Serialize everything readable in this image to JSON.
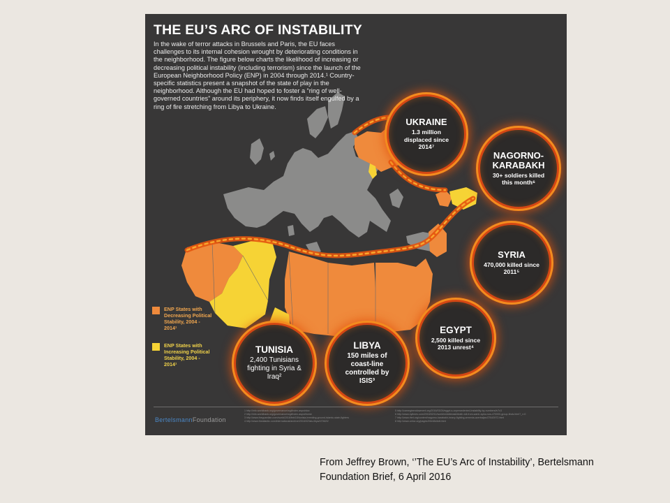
{
  "infographic": {
    "title": "THE EU’S ARC OF INSTABILITY",
    "intro": "In the wake of terror attacks in Brussels and Paris, the EU faces challenges to its internal cohesion wrought by deteriorating conditions in the neighborhood. The figure below charts the likelihood of increasing or decreasing political instability (including terrorism) since the launch of the European Neighborhood Policy (ENP) in 2004 through 2014.¹ Country-specific statistics present a snapshot of the state of play in the neighborhood. Although the EU had hoped to foster a “ring of well-governed countries” around its periphery, it now finds itself engulfed by a ring of fire stretching from Libya to Ukraine.",
    "colors": {
      "background": "#383737",
      "eu_land": "#8b8b8a",
      "decreasing": "#ef8a3c",
      "increasing": "#f6d335",
      "fire": "#e4540e"
    },
    "rings": {
      "ukraine": {
        "name": "UKRAINE",
        "stat": "1.3 million displaced since 2014⁷"
      },
      "nagorno": {
        "name1": "NAGORNO-",
        "name2": "KARABAKH",
        "stat": "30+ soldiers killed this month⁶"
      },
      "syria": {
        "name": "SYRIA",
        "stat": "470,000 killed since 2011⁵"
      },
      "egypt": {
        "name": "EGYPT",
        "stat": "2,500 killed since 2013 unrest⁴"
      },
      "libya": {
        "name": "LIBYA",
        "stat": "150 miles of coast-line controlled by ISIS³"
      },
      "tunisia": {
        "name": "TUNISIA",
        "stat": "2,400 Tunisians fighting in Syria & Iraq²"
      }
    },
    "legend": {
      "decreasing": "ENP States with Decreasing Political Stability, 2004 - 2014¹",
      "increasing": "ENP States with Increasing Political Stability, 2004 - 2014¹"
    },
    "brand": {
      "part1": "Bertelsmann",
      "part2": "Foundation"
    },
    "notes_left": [
      "1 http://info.worldbank.org/governance/wgi/index.aspx#doc",
      "2 http://info.worldbank.org/governance/wgi/index.aspx#home",
      "3 http://www.theguardian.com/world/2016/feb/15/tunisia-breeding-ground-islamic-state-fighters",
      "4 http://www.theatlantic.com/international/archive/2016/02/isis-libya/470620/"
    ],
    "notes_right": [
      "5 http://carnegieendowment.org/2016/03/24/egypt-s-unprecedented-instability-by-numbers/iv7c3",
      "6 http://www.nytimes.com/2016/02/11/world/middleeast/death-toll-from-warin-syria-now-470000-group-finds.html?_r=0",
      "7 http://www.rferl.org/content/nagorno-karabakh-heavy-fighting-armenia-azerbaijan/27643972.html",
      "8 http://www.unhcr.org/pages/49e48d4d6.html"
    ]
  },
  "caption": {
    "line1": "From Jeffrey Brown, ‘’The EU’s Arc of Instability’, Bertelsmann",
    "line2": "Foundation Brief,  6 April 2016"
  }
}
